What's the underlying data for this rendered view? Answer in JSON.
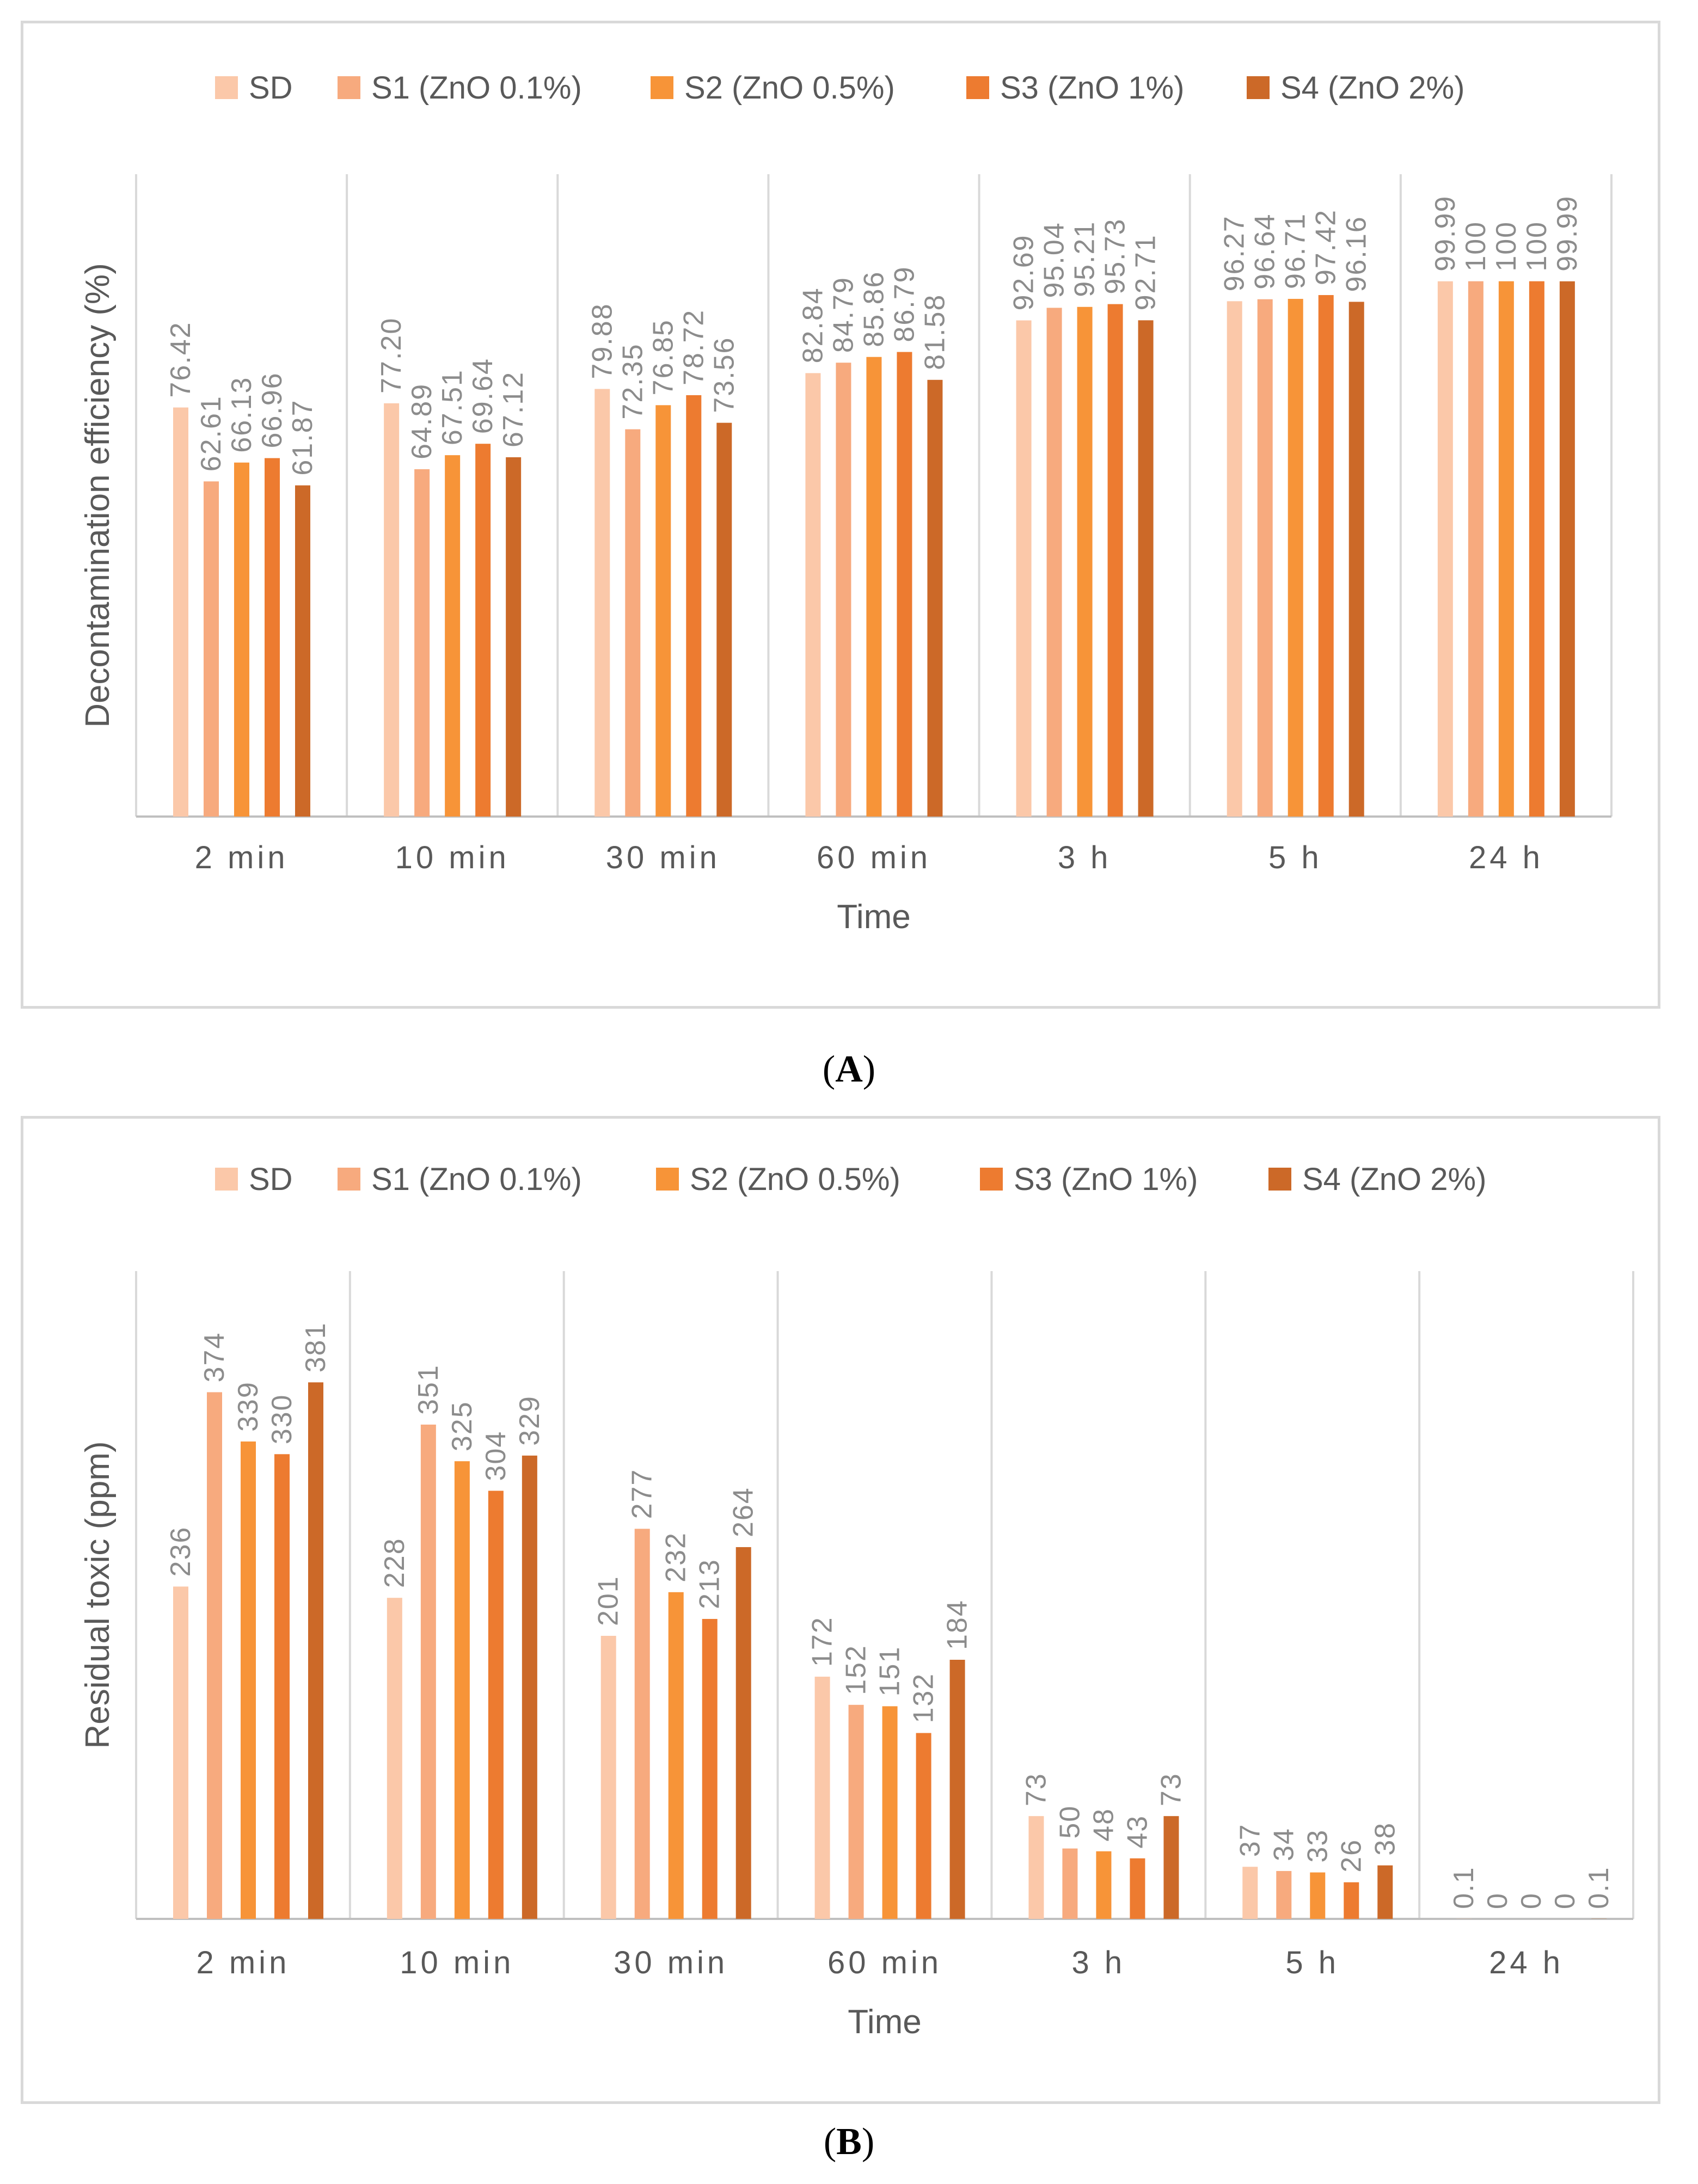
{
  "captions": {
    "a": {
      "open": "(",
      "letter": "A",
      "close": ")"
    },
    "b": {
      "open": "(",
      "letter": "B",
      "close": ")"
    }
  },
  "chart_data": [
    {
      "id": "A",
      "type": "bar",
      "xlabel": "Time",
      "ylabel": "Decontamination efficiency (%)",
      "ylim": [
        0,
        120
      ],
      "categories": [
        "2 min",
        "10 min",
        "30 min",
        "60 min",
        "3 h",
        "5 h",
        "24 h"
      ],
      "legend_position": "top",
      "grid": "vertical separators between categories",
      "value_labels": [
        [
          "76.42",
          "62.61",
          "66.13",
          "66.96",
          "61.87"
        ],
        [
          "77.20",
          "64.89",
          "67.51",
          "69.64",
          "67.12"
        ],
        [
          "79.88",
          "72.35",
          "76.85",
          "78.72",
          "73.56"
        ],
        [
          "82.84",
          "84.79",
          "85.86",
          "86.79",
          "81.58"
        ],
        [
          "92.69",
          "95.04",
          "95.21",
          "95.73",
          "92.71"
        ],
        [
          "96.27",
          "96.64",
          "96.71",
          "97.42",
          "96.16"
        ],
        [
          "99.99",
          "100",
          "100",
          "100",
          "99.99"
        ]
      ],
      "series": [
        {
          "name": "SD",
          "color": "#fbc8a9",
          "values": [
            76.42,
            77.2,
            79.88,
            82.84,
            92.69,
            96.27,
            99.99
          ]
        },
        {
          "name": "S1 (ZnO 0.1%)",
          "color": "#f7aa7e",
          "values": [
            62.61,
            64.89,
            72.35,
            84.79,
            95.04,
            96.64,
            100
          ]
        },
        {
          "name": "S2 (ZnO 0.5%)",
          "color": "#f79438",
          "values": [
            66.13,
            67.51,
            76.85,
            85.86,
            95.21,
            96.71,
            100
          ]
        },
        {
          "name": "S3 (ZnO 1%)",
          "color": "#ed7b30",
          "values": [
            66.96,
            69.64,
            78.72,
            86.79,
            95.73,
            97.42,
            100
          ]
        },
        {
          "name": "S4 (ZnO 2%)",
          "color": "#cc6928",
          "values": [
            61.87,
            67.12,
            73.56,
            81.58,
            92.71,
            96.16,
            99.99
          ]
        }
      ]
    },
    {
      "id": "B",
      "type": "bar",
      "xlabel": "Time",
      "ylabel": "Residual toxic (ppm)",
      "ylim": [
        0,
        460
      ],
      "categories": [
        "2 min",
        "10 min",
        "30 min",
        "60 min",
        "3 h",
        "5 h",
        "24 h"
      ],
      "legend_position": "top",
      "grid": "vertical separators between categories",
      "value_labels": [
        [
          "236",
          "374",
          "339",
          "330",
          "381"
        ],
        [
          "228",
          "351",
          "325",
          "304",
          "329"
        ],
        [
          "201",
          "277",
          "232",
          "213",
          "264"
        ],
        [
          "172",
          "152",
          "151",
          "132",
          "184"
        ],
        [
          "73",
          "50",
          "48",
          "43",
          "73"
        ],
        [
          "37",
          "34",
          "33",
          "26",
          "38"
        ],
        [
          "0.1",
          "0",
          "0",
          "0",
          "0.1"
        ]
      ],
      "series": [
        {
          "name": "SD",
          "color": "#fbc8a9",
          "values": [
            236,
            228,
            201,
            172,
            73,
            37,
            0.1
          ]
        },
        {
          "name": "S1 (ZnO 0.1%)",
          "color": "#f7aa7e",
          "values": [
            374,
            351,
            277,
            152,
            50,
            34,
            0
          ]
        },
        {
          "name": "S2 (ZnO 0.5%)",
          "color": "#f79438",
          "values": [
            339,
            325,
            232,
            151,
            48,
            33,
            0
          ]
        },
        {
          "name": "S3 (ZnO 1%)",
          "color": "#ed7b30",
          "values": [
            330,
            304,
            213,
            132,
            43,
            26,
            0
          ]
        },
        {
          "name": "S4 (ZnO 2%)",
          "color": "#cc6928",
          "values": [
            381,
            329,
            264,
            184,
            73,
            38,
            0.1
          ]
        }
      ]
    }
  ]
}
